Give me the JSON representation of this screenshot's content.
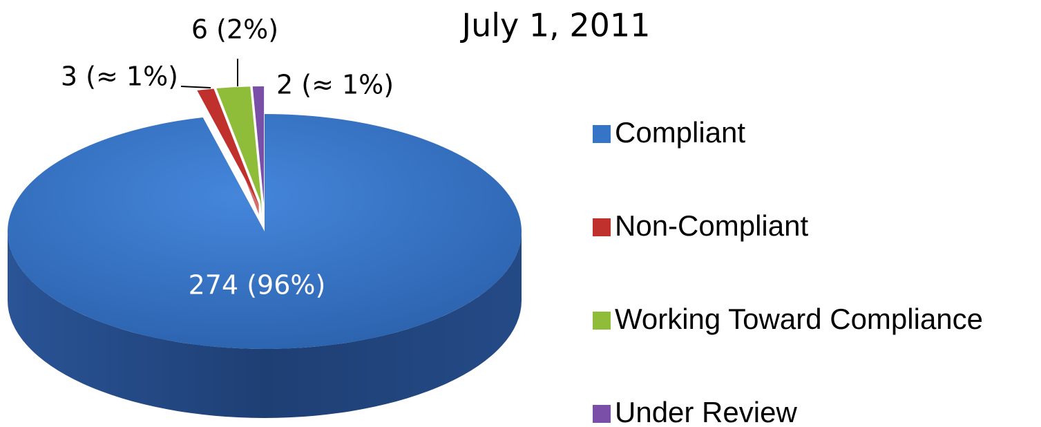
{
  "chart_data": {
    "type": "pie",
    "title": "July 1, 2011",
    "categories": [
      "Compliant",
      "Non-Compliant",
      "Working Toward Compliance",
      "Under Review"
    ],
    "values": [
      274,
      3,
      6,
      2
    ],
    "value_labels": [
      "274 (96%)",
      "3 (≈ 1%)",
      "6 (2%)",
      "2 (≈ 1%)"
    ],
    "colors": [
      "#3674c7",
      "#c0312e",
      "#8fbd3a",
      "#7a4fa8"
    ]
  }
}
